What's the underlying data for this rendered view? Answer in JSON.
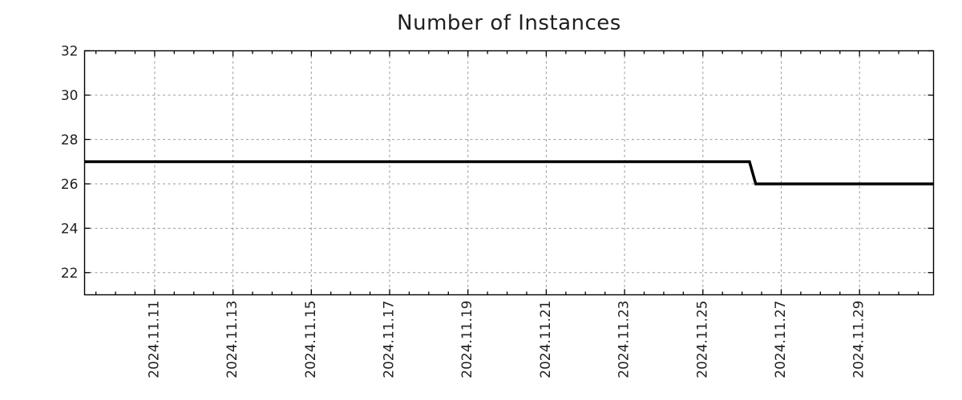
{
  "chart_data": {
    "type": "line",
    "title": "Number of Instances",
    "grid": "dashed",
    "legend_position": "none",
    "colors": {
      "background": "#ffffff",
      "grid": "#999999",
      "axis": "#000000",
      "text": "#1f1f1f"
    },
    "x_axis": {
      "kind": "time",
      "unit": "day of 2024-11, fractional",
      "min": 9.21,
      "max": 30.89,
      "minor_tick_step": 0.5,
      "tick_label_rotation_deg": -90,
      "major_ticks": [
        {
          "value": 11,
          "label": "2024.11.11"
        },
        {
          "value": 13,
          "label": "2024.11.13"
        },
        {
          "value": 15,
          "label": "2024.11.15"
        },
        {
          "value": 17,
          "label": "2024.11.17"
        },
        {
          "value": 19,
          "label": "2024.11.19"
        },
        {
          "value": 21,
          "label": "2024.11.21"
        },
        {
          "value": 23,
          "label": "2024.11.23"
        },
        {
          "value": 25,
          "label": "2024.11.25"
        },
        {
          "value": 27,
          "label": "2024.11.27"
        },
        {
          "value": 29,
          "label": "2024.11.29"
        }
      ]
    },
    "y_axis": {
      "min": 21,
      "max": 32,
      "major_ticks": [
        {
          "value": 22,
          "label": "22"
        },
        {
          "value": 24,
          "label": "24"
        },
        {
          "value": 26,
          "label": "26"
        },
        {
          "value": 28,
          "label": "28"
        },
        {
          "value": 30,
          "label": "30"
        },
        {
          "value": 32,
          "label": "32"
        }
      ]
    },
    "series": [
      {
        "name": "Number of Instances",
        "color": "#000000",
        "line_width": 3.5,
        "points": [
          [
            9.21,
            27
          ],
          [
            26.19,
            27
          ],
          [
            26.35,
            26
          ],
          [
            30.89,
            26
          ]
        ]
      }
    ]
  }
}
